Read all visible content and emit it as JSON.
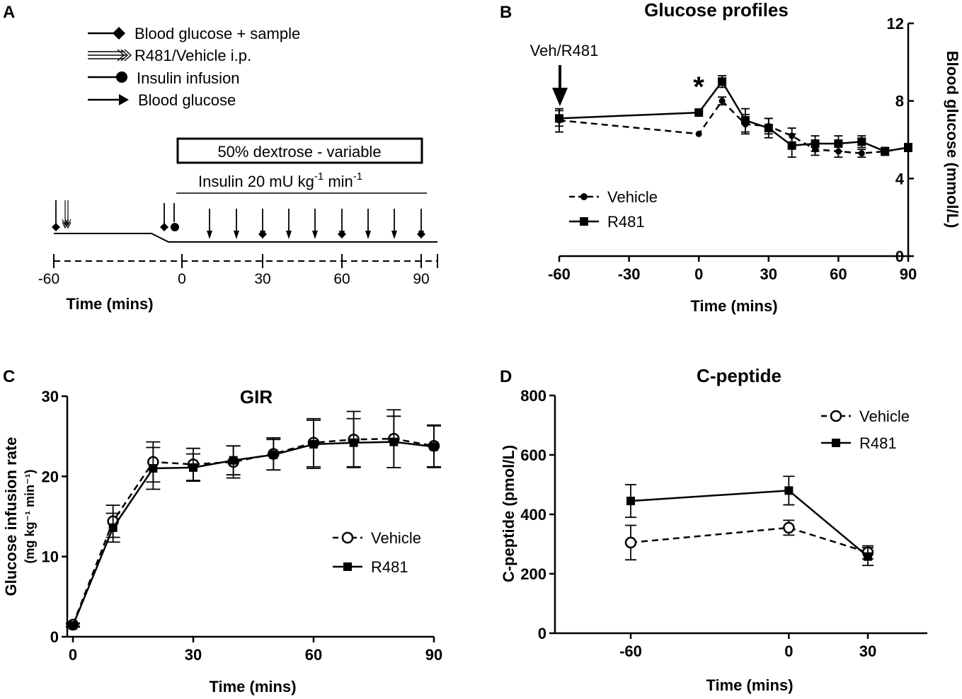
{
  "panels": {
    "A": {
      "letter": "A",
      "legend": [
        "Blood glucose + sample",
        "R481/Vehicle i.p.",
        "Insulin infusion",
        "Blood glucose"
      ],
      "dextrose_label": "50% dextrose - variable",
      "insulin_label_pre": "Insulin 20 mU kg",
      "insulin_sup1": "-1",
      "insulin_label_mid": " min",
      "insulin_sup2": "-1",
      "ticks": [
        "-60",
        "0",
        "30",
        "60",
        "90"
      ],
      "xlabel": "Time (mins)"
    },
    "B": {
      "letter": "B",
      "annotation": "Veh/R481",
      "sig": "*"
    },
    "C": {
      "letter": "C",
      "ylabel_line1": "Glucose infusion rate",
      "ylabel_line2": "(mg kg⁻¹ min⁻¹)"
    },
    "D": {
      "letter": "D"
    }
  },
  "chart_data": [
    {
      "id": "B",
      "type": "line",
      "title": "Glucose profiles",
      "xlabel": "Time (mins)",
      "ylabel": "Blood glucose (mmol/L)",
      "xlim": [
        -60,
        90
      ],
      "ylim": [
        0,
        12
      ],
      "xticks": [
        -60,
        -30,
        0,
        30,
        60,
        90
      ],
      "yticks": [
        0,
        4,
        8,
        12
      ],
      "series": [
        {
          "name": "Vehicle",
          "marker": "dot",
          "dash": true,
          "x": [
            -60,
            0,
            10,
            20,
            30,
            40,
            50,
            60,
            70,
            80,
            90
          ],
          "y": [
            7.0,
            6.3,
            8.0,
            6.8,
            6.7,
            6.2,
            5.5,
            5.4,
            5.3,
            5.4,
            5.6
          ],
          "err": [
            0.6,
            0,
            0.2,
            0.5,
            0.4,
            0.4,
            0.3,
            0.3,
            0.2,
            0.2,
            0.2
          ]
        },
        {
          "name": "R481",
          "marker": "square",
          "dash": false,
          "x": [
            -60,
            0,
            10,
            20,
            30,
            40,
            50,
            60,
            70,
            80,
            90
          ],
          "y": [
            7.1,
            7.4,
            9.0,
            7.0,
            6.6,
            5.7,
            5.8,
            5.8,
            5.9,
            5.4,
            5.6
          ],
          "err": [
            0.4,
            0,
            0.3,
            0.6,
            0.5,
            0.6,
            0.4,
            0.4,
            0.3,
            0.2,
            0.2
          ]
        }
      ]
    },
    {
      "id": "C",
      "type": "line",
      "title": "GIR",
      "xlabel": "Time (mins)",
      "ylabel": "Glucose infusion rate (mg kg-1 min-1)",
      "xlim": [
        0,
        90
      ],
      "ylim": [
        0,
        30
      ],
      "xticks": [
        0,
        30,
        60,
        90
      ],
      "yticks": [
        0,
        10,
        20,
        30
      ],
      "series": [
        {
          "name": "Vehicle",
          "marker": "circle-open",
          "dash": true,
          "x": [
            0,
            10,
            20,
            30,
            40,
            50,
            60,
            70,
            80,
            90
          ],
          "y": [
            1.5,
            14.4,
            21.8,
            21.5,
            21.8,
            22.8,
            24.2,
            24.6,
            24.7,
            23.8
          ],
          "err": [
            0.2,
            2.0,
            2.5,
            2.0,
            2.0,
            2.0,
            3.0,
            3.5,
            3.6,
            2.6
          ]
        },
        {
          "name": "R481",
          "marker": "square",
          "dash": false,
          "x": [
            0,
            10,
            20,
            30,
            40,
            50,
            60,
            70,
            80,
            90
          ],
          "y": [
            1.4,
            13.6,
            21.0,
            21.1,
            22.0,
            22.7,
            24.0,
            24.2,
            24.3,
            23.7
          ],
          "err": [
            0.2,
            1.8,
            2.6,
            1.7,
            1.8,
            1.9,
            3.0,
            3.0,
            3.2,
            2.6
          ]
        }
      ]
    },
    {
      "id": "D",
      "type": "line",
      "title": "C-peptide",
      "xlabel": "Time (mins)",
      "ylabel": "C-peptide (pmol/L)",
      "xlim": [
        -60,
        30
      ],
      "ylim": [
        0,
        800
      ],
      "xticks": [
        -60,
        0,
        30
      ],
      "yticks": [
        0,
        200,
        400,
        600,
        800
      ],
      "series": [
        {
          "name": "Vehicle",
          "marker": "circle-open",
          "dash": true,
          "x": [
            -60,
            0,
            30
          ],
          "y": [
            305,
            355,
            272
          ],
          "err": [
            58,
            25,
            22
          ]
        },
        {
          "name": "R481",
          "marker": "square",
          "dash": false,
          "x": [
            -60,
            0,
            30
          ],
          "y": [
            445,
            480,
            258
          ],
          "err": [
            55,
            48,
            30
          ]
        }
      ]
    }
  ]
}
